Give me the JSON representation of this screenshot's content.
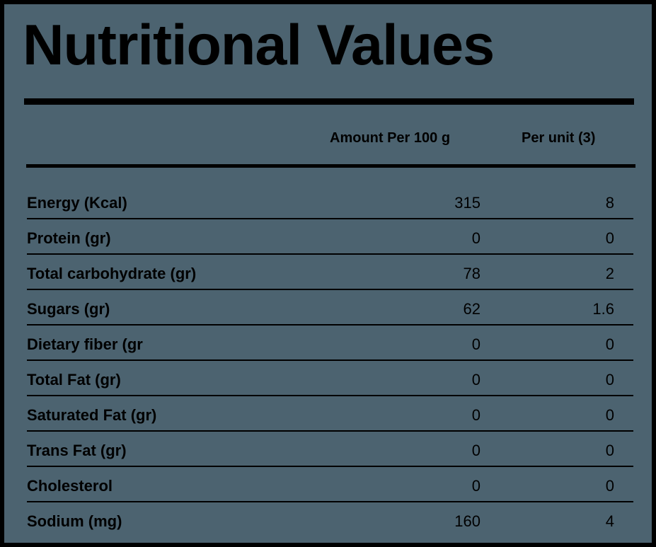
{
  "title": "Nutritional Values",
  "columns": {
    "per_100g": "Amount Per 100 g",
    "per_unit": "Per unit (3)"
  },
  "rows": [
    {
      "label": "Energy (Kcal)",
      "per_100g": "315",
      "per_unit": "8"
    },
    {
      "label": "Protein (gr)",
      "per_100g": "0",
      "per_unit": "0"
    },
    {
      "label": "Total carbohydrate (gr)",
      "per_100g": "78",
      "per_unit": "2"
    },
    {
      "label": "Sugars (gr)",
      "per_100g": "62",
      "per_unit": "1.6"
    },
    {
      "label": "Dietary fiber (gr",
      "per_100g": "0",
      "per_unit": "0"
    },
    {
      "label": "Total Fat (gr)",
      "per_100g": "0",
      "per_unit": "0"
    },
    {
      "label": "Saturated Fat (gr)",
      "per_100g": "0",
      "per_unit": "0"
    },
    {
      "label": "Trans Fat (gr)",
      "per_100g": "0",
      "per_unit": "0"
    },
    {
      "label": "Cholesterol",
      "per_100g": "0",
      "per_unit": "0"
    },
    {
      "label": "Sodium (mg)",
      "per_100g": "160",
      "per_unit": "4"
    }
  ],
  "colors": {
    "background": "#4c6370",
    "border": "#000000",
    "text": "#000000"
  }
}
